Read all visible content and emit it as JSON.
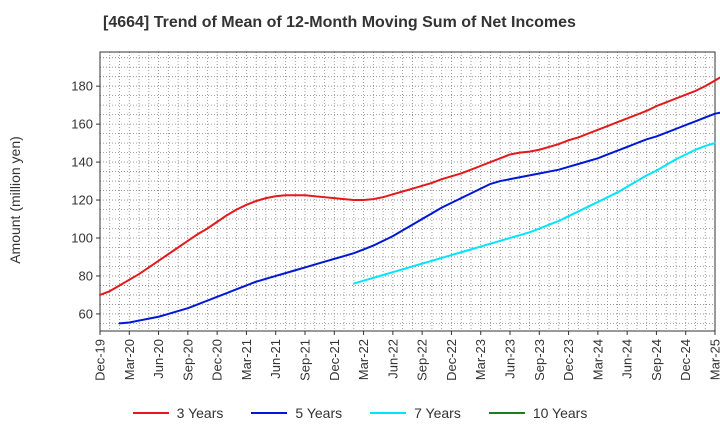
{
  "chart_data": {
    "type": "line",
    "title": "[4664]  Trend of Mean of 12-Month Moving Sum of Net Incomes",
    "ylabel": "Amount (million yen)",
    "xlabel": "",
    "ylim": [
      51,
      198
    ],
    "yticks": [
      60,
      80,
      100,
      120,
      140,
      160,
      180
    ],
    "x_tick_labels": [
      "Dec-19",
      "Mar-20",
      "Jun-20",
      "Sep-20",
      "Dec-20",
      "Mar-21",
      "Jun-21",
      "Sep-21",
      "Dec-21",
      "Mar-22",
      "Jun-22",
      "Sep-22",
      "Dec-22",
      "Mar-23",
      "Jun-23",
      "Sep-23",
      "Dec-23",
      "Mar-24",
      "Jun-24",
      "Sep-24",
      "Dec-24",
      "Mar-25"
    ],
    "grid": true,
    "legend_position": "bottom",
    "series": [
      {
        "name": "3 Years",
        "color": "#e31a1c",
        "start": "Dec-19",
        "values": [
          70,
          72,
          75,
          78,
          81,
          84.5,
          88,
          91.5,
          95,
          98.5,
          102,
          105,
          108.5,
          112,
          115,
          117.5,
          119.5,
          121,
          122,
          122.5,
          122.5,
          122.5,
          122,
          121.5,
          121,
          120.5,
          120,
          120,
          120.5,
          121.5,
          123,
          124.5,
          126,
          127.5,
          129,
          131,
          132.5,
          134,
          136,
          138,
          140,
          142,
          144,
          145,
          145.5,
          146.5,
          148,
          149.5,
          151.5,
          153,
          155,
          157,
          159,
          161,
          163,
          165,
          167,
          169.5,
          171.5,
          173.5,
          175.5,
          177.5,
          180,
          183,
          186,
          189,
          191.5,
          193
        ]
      },
      {
        "name": "5 Years",
        "color": "#0018d4",
        "start": "Feb-20",
        "values": [
          55,
          55.5,
          56.5,
          57.5,
          58.5,
          60,
          61.5,
          63,
          65,
          67,
          69,
          71,
          73,
          75,
          77,
          78.5,
          80,
          81.5,
          83,
          84.5,
          86,
          87.5,
          89,
          90.5,
          92,
          94,
          96,
          98.5,
          101,
          104,
          107,
          110,
          113,
          116,
          118.5,
          121,
          123.5,
          126,
          128.5,
          130,
          131,
          132,
          133,
          134,
          135,
          136,
          137.5,
          139,
          140.5,
          142,
          144,
          146,
          148,
          150,
          152,
          153.5,
          155.5,
          157.5,
          159.5,
          161.5,
          163.5,
          165.5,
          166.5
        ]
      },
      {
        "name": "7 Years",
        "color": "#00e5ff",
        "start": "Feb-22",
        "values": [
          76,
          77.5,
          79,
          80.5,
          82,
          83.5,
          85,
          86.5,
          88,
          89.5,
          91,
          92.5,
          94,
          95.5,
          97,
          98.5,
          100,
          101.5,
          103,
          105,
          107,
          109,
          111.5,
          114,
          116.5,
          119,
          121.5,
          124,
          127,
          130,
          133,
          135.5,
          138.5,
          141.5,
          144,
          146.5,
          148.5,
          150
        ]
      },
      {
        "name": "10 Years",
        "color": "#1a7f1a",
        "start": "",
        "values": []
      }
    ]
  }
}
